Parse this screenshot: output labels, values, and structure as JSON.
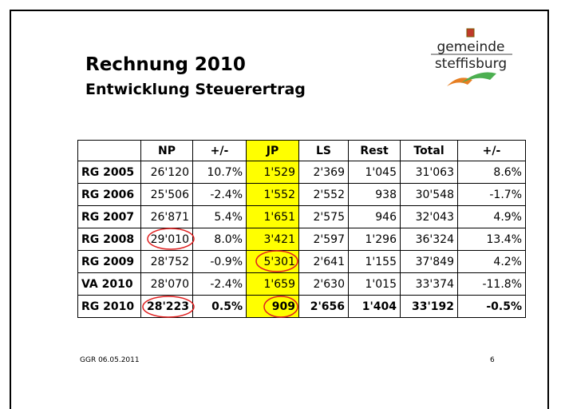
{
  "header": {
    "title": "Rechnung 2010",
    "subtitle": "Entwicklung Steuerertrag",
    "logo_line1": "gemeinde",
    "logo_line2": "steffisburg"
  },
  "table": {
    "columns": [
      "NP",
      "+/-",
      "JP",
      "LS",
      "Rest",
      "Total",
      "+/-"
    ],
    "rows": [
      [
        "RG 2005",
        "26'120",
        "10.7%",
        "1'529",
        "2'369",
        "1'045",
        "31'063",
        "8.6%"
      ],
      [
        "RG 2006",
        "25'506",
        "-2.4%",
        "1'552",
        "2'552",
        "938",
        "30'548",
        "-1.7%"
      ],
      [
        "RG 2007",
        "26'871",
        "5.4%",
        "1'651",
        "2'575",
        "946",
        "32'043",
        "4.9%"
      ],
      [
        "RG 2008",
        "29'010",
        "8.0%",
        "3'421",
        "2'597",
        "1'296",
        "36'324",
        "13.4%"
      ],
      [
        "RG 2009",
        "28'752",
        "-0.9%",
        "5'301",
        "2'641",
        "1'155",
        "37'849",
        "4.2%"
      ],
      [
        "VA 2010",
        "28'070",
        "-2.4%",
        "1'659",
        "2'630",
        "1'015",
        "33'374",
        "-11.8%"
      ],
      [
        "RG 2010",
        "28'223",
        "0.5%",
        "909",
        "2'656",
        "1'404",
        "33'192",
        "-0.5%"
      ]
    ]
  },
  "footer": {
    "left": "GGR 06.05.2011",
    "right": "6"
  }
}
